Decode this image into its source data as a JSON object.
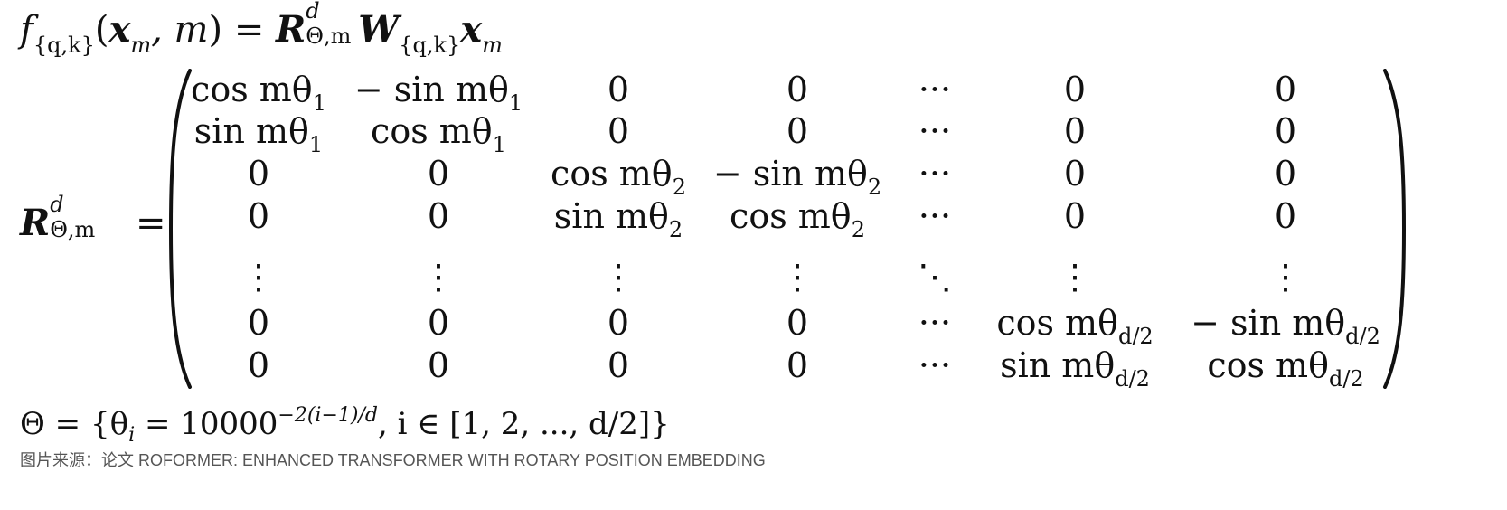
{
  "equation_1": {
    "f_symbol": "f",
    "f_subscript": "{q,k}",
    "open_paren": "(",
    "x_symbol": "x",
    "x_subscript": "m",
    "comma_m": ", m",
    "close_paren": ")",
    "equals": "=",
    "R_symbol": "R",
    "R_superscript": "d",
    "R_subscript": "Θ,m",
    "W_symbol": "W",
    "W_subscript": "{q,k}",
    "x2_symbol": "x",
    "x2_subscript": "m"
  },
  "rotation_matrix": {
    "lhs_symbol": "R",
    "lhs_superscript": "d",
    "lhs_subscript": "Θ,m",
    "equals": "=",
    "rows": [
      [
        {
          "text": "cos mθ",
          "sub": "1"
        },
        {
          "text": "− sin mθ",
          "sub": "1"
        },
        {
          "text": "0",
          "sub": ""
        },
        {
          "text": "0",
          "sub": ""
        },
        {
          "text": "···",
          "sub": ""
        },
        {
          "text": "0",
          "sub": ""
        },
        {
          "text": "0",
          "sub": ""
        }
      ],
      [
        {
          "text": "sin mθ",
          "sub": "1"
        },
        {
          "text": "cos mθ",
          "sub": "1"
        },
        {
          "text": "0",
          "sub": ""
        },
        {
          "text": "0",
          "sub": ""
        },
        {
          "text": "···",
          "sub": ""
        },
        {
          "text": "0",
          "sub": ""
        },
        {
          "text": "0",
          "sub": ""
        }
      ],
      [
        {
          "text": "0",
          "sub": ""
        },
        {
          "text": "0",
          "sub": ""
        },
        {
          "text": "cos mθ",
          "sub": "2"
        },
        {
          "text": "− sin mθ",
          "sub": "2"
        },
        {
          "text": "···",
          "sub": ""
        },
        {
          "text": "0",
          "sub": ""
        },
        {
          "text": "0",
          "sub": ""
        }
      ],
      [
        {
          "text": "0",
          "sub": ""
        },
        {
          "text": "0",
          "sub": ""
        },
        {
          "text": "sin mθ",
          "sub": "2"
        },
        {
          "text": "cos mθ",
          "sub": "2"
        },
        {
          "text": "···",
          "sub": ""
        },
        {
          "text": "0",
          "sub": ""
        },
        {
          "text": "0",
          "sub": ""
        }
      ],
      [
        {
          "text": "⋮",
          "sub": ""
        },
        {
          "text": "⋮",
          "sub": ""
        },
        {
          "text": "⋮",
          "sub": ""
        },
        {
          "text": "⋮",
          "sub": ""
        },
        {
          "text": "⋱",
          "sub": ""
        },
        {
          "text": "⋮",
          "sub": ""
        },
        {
          "text": "⋮",
          "sub": ""
        }
      ],
      [
        {
          "text": "0",
          "sub": ""
        },
        {
          "text": "0",
          "sub": ""
        },
        {
          "text": "0",
          "sub": ""
        },
        {
          "text": "0",
          "sub": ""
        },
        {
          "text": "···",
          "sub": ""
        },
        {
          "text": "cos mθ",
          "sub": "d/2"
        },
        {
          "text": "− sin mθ",
          "sub": "d/2"
        }
      ],
      [
        {
          "text": "0",
          "sub": ""
        },
        {
          "text": "0",
          "sub": ""
        },
        {
          "text": "0",
          "sub": ""
        },
        {
          "text": "0",
          "sub": ""
        },
        {
          "text": "···",
          "sub": ""
        },
        {
          "text": "sin mθ",
          "sub": "d/2"
        },
        {
          "text": "cos mθ",
          "sub": "d/2"
        }
      ]
    ]
  },
  "theta_definition": {
    "lhs": "Θ = {θ",
    "theta_subscript": "i",
    "equals": " = 10000",
    "exponent": "−2(i−1)/d",
    "rest": ", i ∈ [1, 2, ..., d/2]}"
  },
  "caption": "图片来源：论文 ROFORMER: ENHANCED TRANSFORMER WITH ROTARY POSITION EMBEDDING"
}
